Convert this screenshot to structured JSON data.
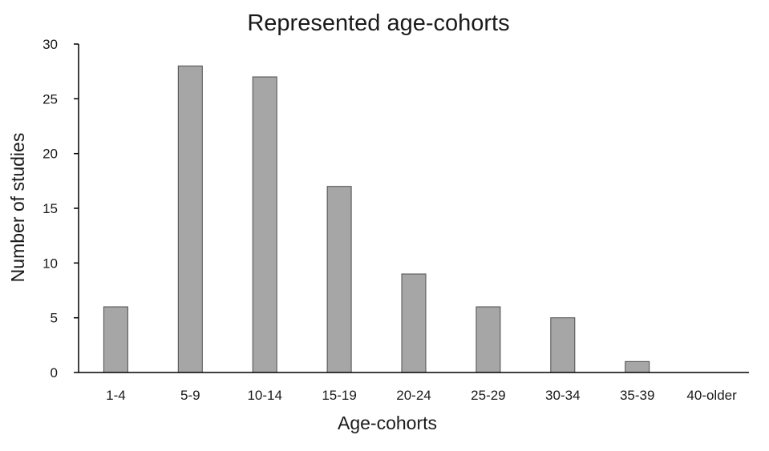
{
  "chart_data": {
    "type": "bar",
    "title": "Represented age-cohorts",
    "xlabel": "Age-cohorts",
    "ylabel": "Number of studies",
    "categories": [
      "1-4",
      "5-9",
      "10-14",
      "15-19",
      "20-24",
      "25-29",
      "30-34",
      "35-39",
      "40-older"
    ],
    "values": [
      6,
      28,
      27,
      17,
      9,
      6,
      5,
      1,
      0
    ],
    "ylim": [
      0,
      30
    ],
    "yticks": [
      0,
      5,
      10,
      15,
      20,
      25,
      30
    ],
    "grid": false,
    "legend": "none",
    "bar_color": "#a6a6a6"
  }
}
